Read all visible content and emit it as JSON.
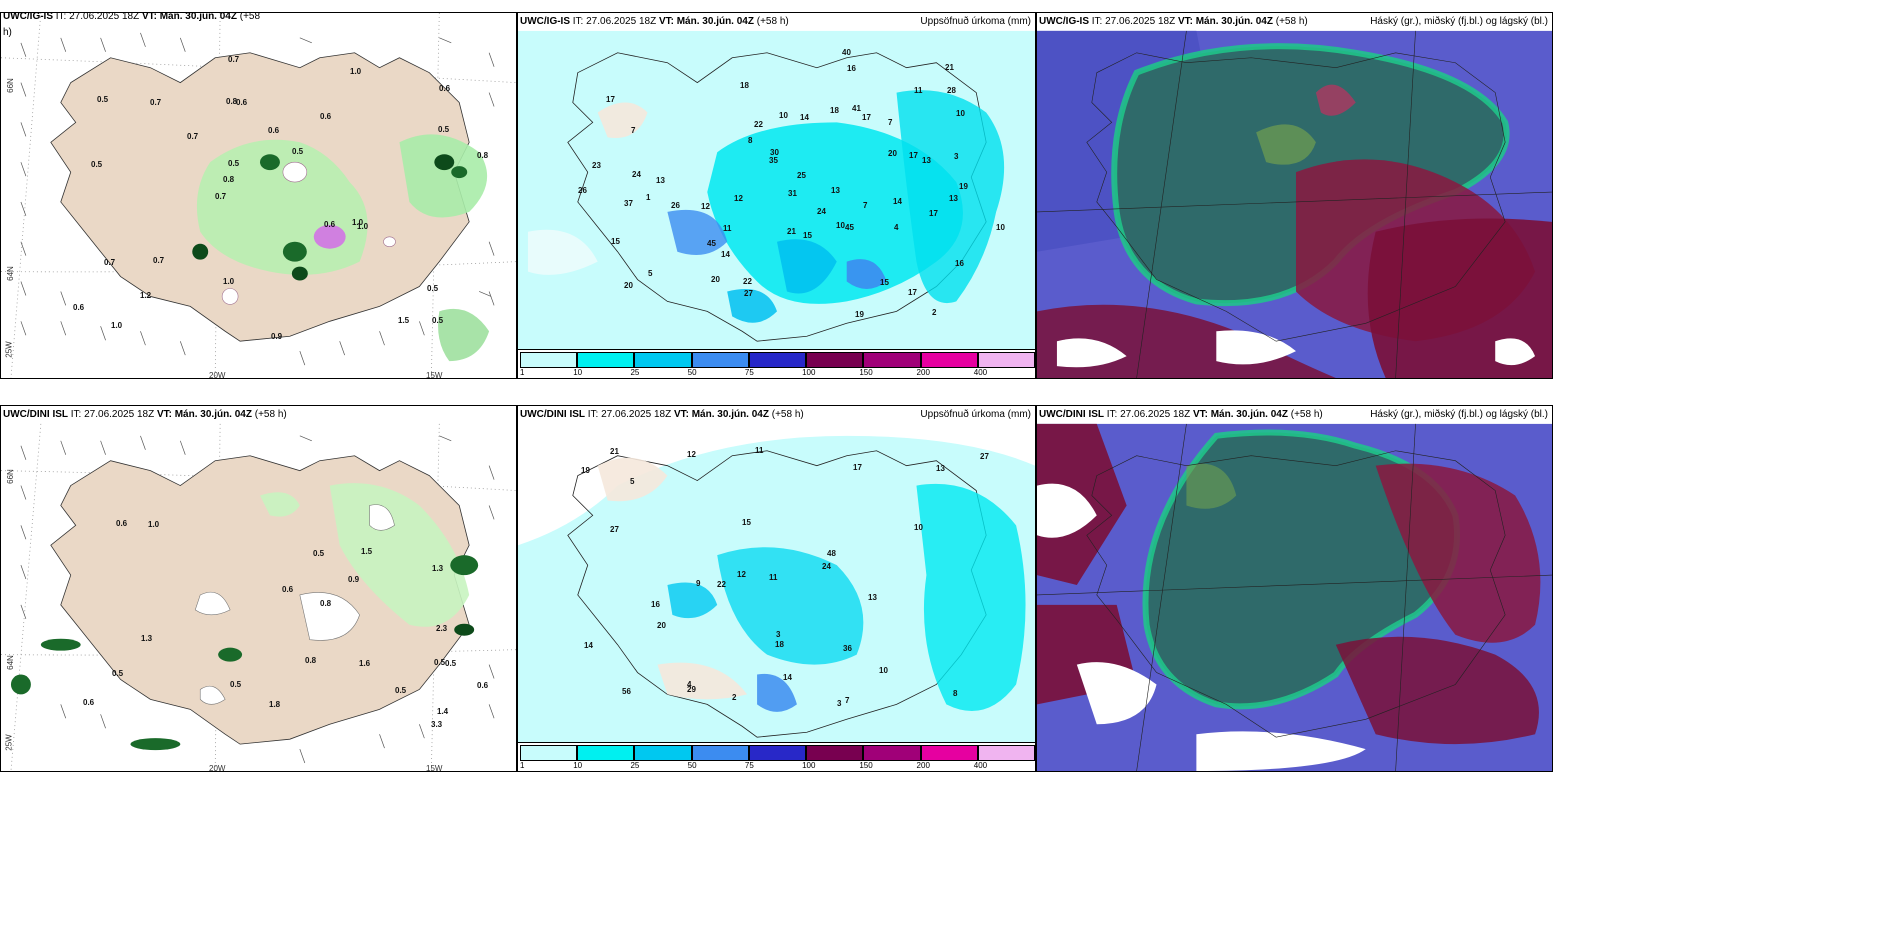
{
  "panels": {
    "p1": {
      "title_model": "UWC/IG-IS",
      "title_rest": " IT: 27.06.2025 18Z ",
      "vt_label": "VT: Mán. 30.jún. 04Z",
      "lead": " (+58",
      "lead2": "h)"
    },
    "p2": {
      "title_model": "UWC/IG-IS",
      "title_rest": " IT: 27.06.2025 18Z ",
      "vt_label": "VT: Mán. 30.jún. 04Z",
      "lead": " (+58 h)",
      "right": "Uppsöfnuð úrkoma (mm)"
    },
    "p3": {
      "title_model": "UWC/IG-IS",
      "title_rest": " IT: 27.06.2025 18Z ",
      "vt_label": "VT: Mán. 30.jún. 04Z",
      "lead": " (+58 h)",
      "right": "Háský (gr.), miðský (fj.bl.) og lágský (bl.)"
    },
    "p4": {
      "title_model": "UWC/DINI ISL",
      "title_rest": " IT: 27.06.2025 18Z ",
      "vt_label": "VT: Mán. 30.jún. 04Z",
      "lead": " (+58 h)"
    },
    "p5": {
      "title_model": "UWC/DINI ISL",
      "title_rest": " IT: 27.06.2025 18Z ",
      "vt_label": "VT: Mán. 30.jún. 04Z",
      "lead": " (+58 h)",
      "right": "Uppsöfnuð úrkoma (mm)"
    },
    "p6": {
      "title_model": "UWC/DINI ISL",
      "title_rest": " IT: 27.06.2025 18Z ",
      "vt_label": "VT: Mán. 30.jún. 04Z",
      "lead": " (+58 h)",
      "right": "Háský (gr.), miðský (fj.bl.) og lágský (bl.)"
    }
  },
  "axis_labels": {
    "lat66": "66N",
    "lat64": "64N",
    "lon20": "20W",
    "lon15": "15W",
    "lon25": "25W"
  },
  "colorbar": {
    "ticks": [
      "1",
      "10",
      "25",
      "50",
      "75",
      "100",
      "150",
      "200",
      "400"
    ],
    "colors": [
      "#c8fcfc",
      "#00f0f0",
      "#00c8f0",
      "#3c8cf0",
      "#2828c8",
      "#780050",
      "#a00078",
      "#e600a0",
      "#f0b4f0"
    ]
  },
  "p1_values": [
    "0.5",
    "0.5",
    "0.6",
    "0.7",
    "0.6",
    "1.0",
    "0.8",
    "0.6",
    "0.7",
    "0.7",
    "0.6",
    "1.2",
    "0.6",
    "0.5",
    "1.0",
    "0.5",
    "0.7",
    "0.8",
    "0.6",
    "0.5",
    "0.8",
    "1.0",
    "0.5",
    "0.7",
    "1.0",
    "0.7",
    "1.5",
    "0.5",
    "1.0",
    "0.9"
  ],
  "p2_values": [
    "2",
    "1",
    "10",
    "17",
    "16",
    "7",
    "5",
    "12",
    "7",
    "10",
    "17",
    "17",
    "14",
    "18",
    "13",
    "15",
    "14",
    "25",
    "23",
    "20",
    "21",
    "14",
    "17",
    "10",
    "19",
    "24",
    "26",
    "31",
    "35",
    "28",
    "45",
    "37",
    "45",
    "41",
    "22",
    "17",
    "13",
    "15",
    "11",
    "19",
    "11",
    "15",
    "20",
    "40",
    "12",
    "13",
    "10",
    "16",
    "18",
    "21",
    "7",
    "3",
    "4",
    "13",
    "8",
    "26",
    "27",
    "30",
    "24",
    "20",
    "22"
  ],
  "p4_values": [
    "0.5",
    "0.8",
    "0.5",
    "0.6",
    "0.5",
    "0.5",
    "0.6",
    "0.9",
    "0.5",
    "0.6",
    "1.0",
    "0.8",
    "2.3",
    "1.8",
    "0.6",
    "0.5",
    "3.3",
    "1.3",
    "1.4",
    "1.6",
    "1.3",
    "1.5"
  ],
  "p5_values": [
    "2",
    "3",
    "4",
    "10",
    "12",
    "5",
    "9",
    "8",
    "11",
    "15",
    "13",
    "14",
    "12",
    "18",
    "17",
    "24",
    "27",
    "29",
    "22",
    "19",
    "36",
    "27",
    "48",
    "56",
    "10",
    "16",
    "14",
    "20",
    "21",
    "13",
    "11",
    "7",
    "3"
  ]
}
